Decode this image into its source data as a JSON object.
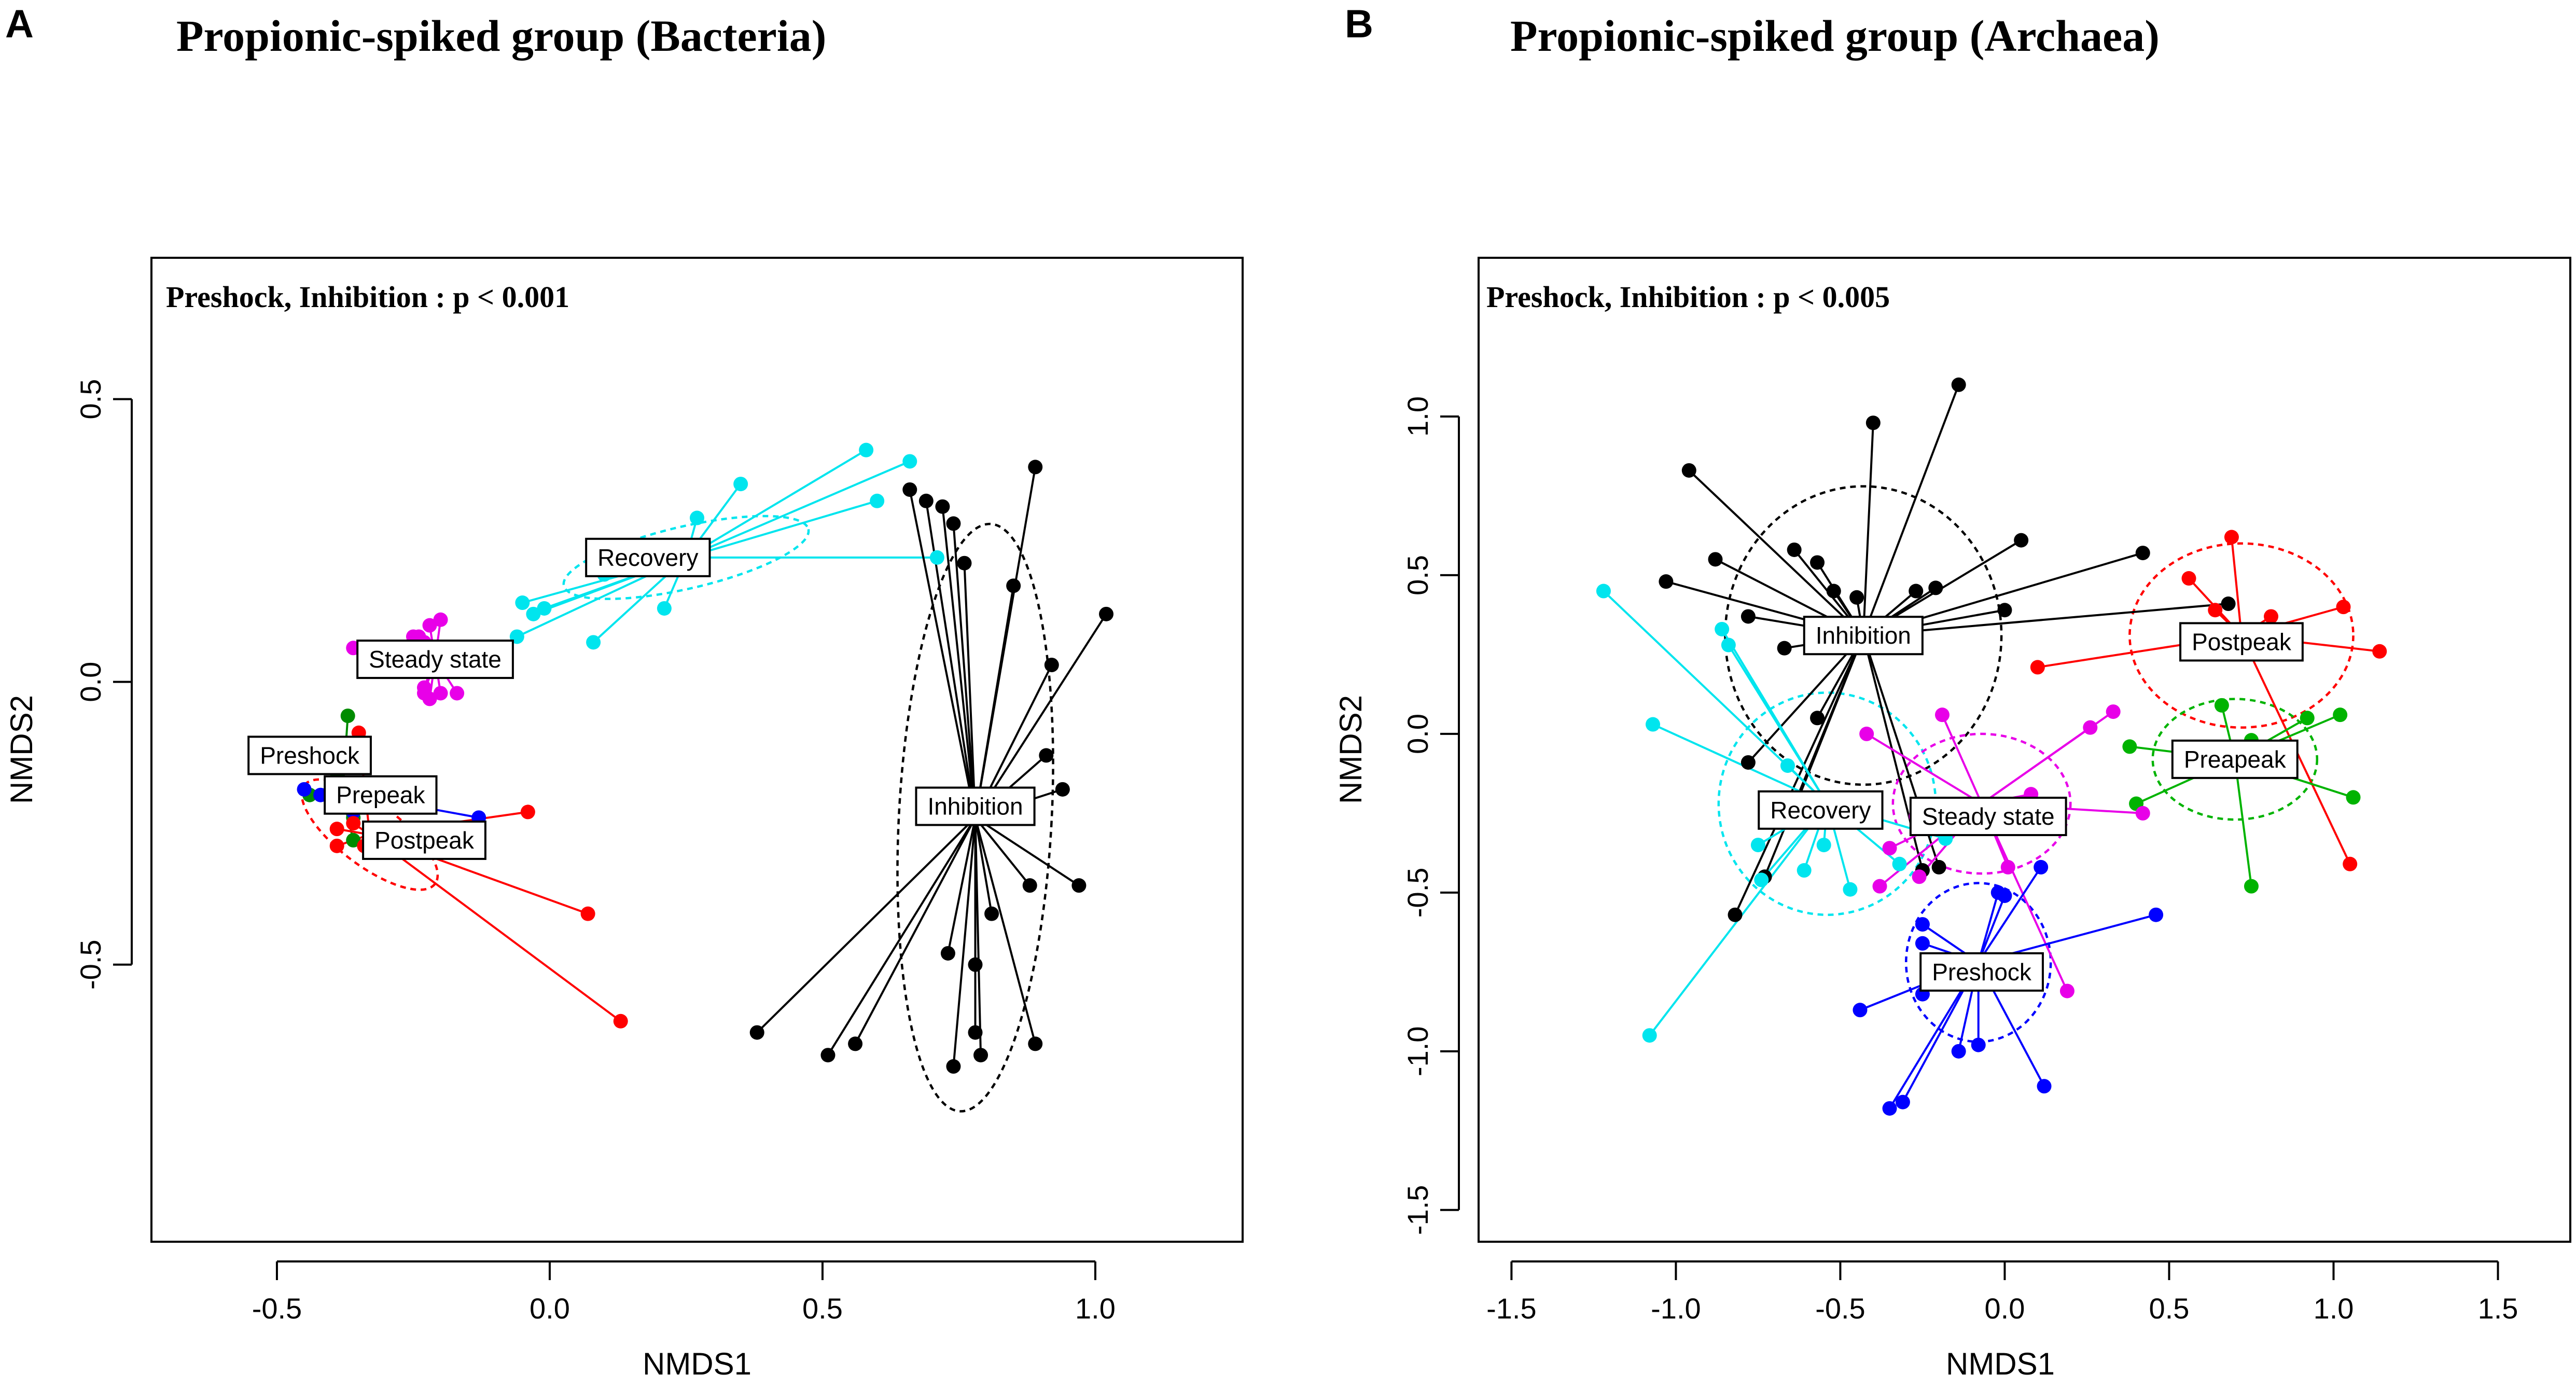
{
  "chart_data": [
    {
      "type": "scatter",
      "panel": "A",
      "title": "Propionic-spiked group (Bacteria)",
      "annotation": "Preshock, Inhibition : p < 0.001",
      "xlabel": "NMDS1",
      "ylabel": "NMDS2",
      "xlim": [
        -0.73,
        1.27
      ],
      "ylim": [
        -0.99,
        0.75
      ],
      "xticks": [
        -0.5,
        0.0,
        0.5,
        1.0
      ],
      "yticks": [
        -0.5,
        0.0,
        0.5
      ],
      "xtick_labels": [
        "-0.5",
        "0.0",
        "0.5",
        "1.0"
      ],
      "ytick_labels": [
        "-0.5",
        "0.0",
        "0.5"
      ],
      "grid": false,
      "groups": [
        {
          "name": "Recovery",
          "color": "#00e5ee",
          "centroid": [
            0.25,
            0.22
          ],
          "ellipse": {
            "rx": 0.23,
            "ry": 0.055,
            "angle_deg": 13
          },
          "points": [
            [
              -0.05,
              0.14
            ],
            [
              -0.03,
              0.12
            ],
            [
              -0.01,
              0.13
            ],
            [
              -0.06,
              0.08
            ],
            [
              0.08,
              0.07
            ],
            [
              0.1,
              0.19
            ],
            [
              0.21,
              0.13
            ],
            [
              0.27,
              0.29
            ],
            [
              0.35,
              0.35
            ],
            [
              0.58,
              0.41
            ],
            [
              0.66,
              0.39
            ],
            [
              0.6,
              0.32
            ],
            [
              0.71,
              0.22
            ]
          ]
        },
        {
          "name": "Steady state",
          "color": "#e800e8",
          "centroid": [
            -0.21,
            0.04
          ],
          "ellipse": {
            "rx": 0.03,
            "ry": 0.03,
            "angle_deg": 0
          },
          "points": [
            [
              -0.36,
              0.06
            ],
            [
              -0.24,
              0.08
            ],
            [
              -0.22,
              0.1
            ],
            [
              -0.2,
              0.11
            ],
            [
              -0.23,
              0.07
            ],
            [
              -0.25,
              0.08
            ],
            [
              -0.23,
              -0.01
            ],
            [
              -0.22,
              -0.03
            ],
            [
              -0.17,
              -0.02
            ],
            [
              -0.2,
              -0.02
            ],
            [
              -0.23,
              -0.02
            ]
          ]
        },
        {
          "name": "Inhibition",
          "color": "#000000",
          "centroid": [
            0.78,
            -0.24
          ],
          "ellipse": {
            "rx": 0.14,
            "ry": 0.52,
            "angle_deg": -3
          },
          "points": [
            [
              0.66,
              0.34
            ],
            [
              0.69,
              0.32
            ],
            [
              0.72,
              0.31
            ],
            [
              0.74,
              0.28
            ],
            [
              0.76,
              0.21
            ],
            [
              0.89,
              0.38
            ],
            [
              0.85,
              0.17
            ],
            [
              0.92,
              0.03
            ],
            [
              0.91,
              -0.13
            ],
            [
              0.94,
              -0.19
            ],
            [
              1.02,
              0.12
            ],
            [
              0.88,
              -0.36
            ],
            [
              0.97,
              -0.36
            ],
            [
              0.81,
              -0.41
            ],
            [
              0.78,
              -0.5
            ],
            [
              0.73,
              -0.48
            ],
            [
              0.38,
              -0.62
            ],
            [
              0.51,
              -0.66
            ],
            [
              0.56,
              -0.64
            ],
            [
              0.74,
              -0.68
            ],
            [
              0.78,
              -0.62
            ],
            [
              0.79,
              -0.66
            ],
            [
              0.89,
              -0.64
            ]
          ]
        },
        {
          "name": "Preshock",
          "color": "#008b00",
          "centroid": [
            -0.38,
            -0.2
          ],
          "ellipse": null,
          "points": [
            [
              -0.37,
              -0.06
            ],
            [
              -0.39,
              -0.17
            ],
            [
              -0.35,
              -0.21
            ],
            [
              -0.44,
              -0.2
            ],
            [
              -0.36,
              -0.24
            ],
            [
              -0.36,
              -0.28
            ]
          ]
        },
        {
          "name": "Prepeak",
          "color": "#0000ff",
          "centroid": [
            -0.3,
            -0.21
          ],
          "ellipse": null,
          "points": [
            [
              -0.45,
              -0.19
            ],
            [
              -0.42,
              -0.2
            ],
            [
              -0.13,
              -0.24
            ],
            [
              -0.36,
              -0.23
            ]
          ]
        },
        {
          "name": "Postpeak",
          "color": "#ff0000",
          "centroid": [
            -0.33,
            -0.27
          ],
          "ellipse": {
            "rx": 0.15,
            "ry": 0.055,
            "angle_deg": -37
          },
          "points": [
            [
              -0.35,
              -0.09
            ],
            [
              -0.39,
              -0.26
            ],
            [
              -0.39,
              -0.29
            ],
            [
              -0.34,
              -0.29
            ],
            [
              -0.36,
              -0.25
            ],
            [
              -0.04,
              -0.23
            ],
            [
              0.07,
              -0.41
            ],
            [
              0.13,
              -0.6
            ]
          ]
        }
      ],
      "labels": [
        {
          "text": "Recovery",
          "at": [
            0.18,
            0.22
          ]
        },
        {
          "text": "Steady state",
          "at": [
            -0.21,
            0.04
          ]
        },
        {
          "text": "Inhibition",
          "at": [
            0.78,
            -0.22
          ]
        },
        {
          "text": "Preshock",
          "at": [
            -0.44,
            -0.13
          ]
        },
        {
          "text": "Prepeak",
          "at": [
            -0.31,
            -0.2
          ]
        },
        {
          "text": "Postpeak",
          "at": [
            -0.23,
            -0.28
          ]
        }
      ]
    },
    {
      "type": "scatter",
      "panel": "B",
      "title": "Propionic-spiked group (Archaea)",
      "annotation": "Preshock, Inhibition : p < 0.005",
      "xlabel": "NMDS1",
      "ylabel": "NMDS2",
      "xlim": [
        -1.6,
        1.72
      ],
      "ylim": [
        -1.6,
        1.5
      ],
      "xticks": [
        -1.5,
        -1.0,
        -0.5,
        0.0,
        0.5,
        1.0,
        1.5
      ],
      "yticks": [
        -1.5,
        -1.0,
        -0.5,
        0.0,
        0.5,
        1.0
      ],
      "xtick_labels": [
        "-1.5",
        "-1.0",
        "-0.5",
        "0.0",
        "0.5",
        "1.0",
        "1.5"
      ],
      "ytick_labels": [
        "-1.5",
        "-1.0",
        "-0.5",
        "0.0",
        "0.5",
        "1.0"
      ],
      "grid": false,
      "groups": [
        {
          "name": "Inhibition",
          "color": "#000000",
          "centroid": [
            -0.43,
            0.31
          ],
          "ellipse": {
            "rx": 0.42,
            "ry": 0.47,
            "angle_deg": 0
          },
          "points": [
            [
              -0.96,
              0.83
            ],
            [
              -0.88,
              0.55
            ],
            [
              -1.03,
              0.48
            ],
            [
              -0.78,
              0.37
            ],
            [
              -0.64,
              0.58
            ],
            [
              -0.57,
              0.54
            ],
            [
              -0.52,
              0.45
            ],
            [
              -0.45,
              0.43
            ],
            [
              -0.4,
              0.98
            ],
            [
              -0.14,
              1.1
            ],
            [
              -0.27,
              0.45
            ],
            [
              -0.21,
              0.46
            ],
            [
              0.05,
              0.61
            ],
            [
              0.0,
              0.39
            ],
            [
              0.42,
              0.57
            ],
            [
              0.68,
              0.41
            ],
            [
              -0.3,
              0.31
            ],
            [
              -0.57,
              0.05
            ],
            [
              -0.67,
              0.27
            ],
            [
              -0.78,
              -0.09
            ],
            [
              -0.63,
              -0.21
            ],
            [
              -0.73,
              -0.45
            ],
            [
              -0.82,
              -0.57
            ],
            [
              -0.2,
              -0.42
            ],
            [
              -0.25,
              -0.43
            ]
          ]
        },
        {
          "name": "Postpeak",
          "color": "#ff0000",
          "centroid": [
            0.72,
            0.31
          ],
          "ellipse": {
            "rx": 0.34,
            "ry": 0.29,
            "angle_deg": 0
          },
          "points": [
            [
              0.56,
              0.49
            ],
            [
              0.69,
              0.62
            ],
            [
              0.81,
              0.37
            ],
            [
              0.64,
              0.39
            ],
            [
              1.03,
              0.4
            ],
            [
              1.14,
              0.26
            ],
            [
              0.1,
              0.21
            ],
            [
              1.05,
              -0.41
            ]
          ]
        },
        {
          "name": "Preapeak",
          "color": "#00b300",
          "centroid": [
            0.7,
            -0.08
          ],
          "ellipse": {
            "rx": 0.25,
            "ry": 0.19,
            "angle_deg": 0
          },
          "points": [
            [
              0.66,
              0.09
            ],
            [
              0.92,
              0.05
            ],
            [
              1.02,
              0.06
            ],
            [
              0.38,
              -0.04
            ],
            [
              0.75,
              -0.02
            ],
            [
              1.06,
              -0.2
            ],
            [
              0.4,
              -0.22
            ],
            [
              0.75,
              -0.48
            ]
          ]
        },
        {
          "name": "Recovery",
          "color": "#00e5ee",
          "centroid": [
            -0.54,
            -0.22
          ],
          "ellipse": {
            "rx": 0.33,
            "ry": 0.35,
            "angle_deg": 0
          },
          "points": [
            [
              -1.22,
              0.45
            ],
            [
              -0.86,
              0.33
            ],
            [
              -0.84,
              0.28
            ],
            [
              -1.07,
              0.03
            ],
            [
              -0.66,
              -0.1
            ],
            [
              -0.68,
              -0.24
            ],
            [
              -0.75,
              -0.35
            ],
            [
              -0.74,
              -0.46
            ],
            [
              -0.61,
              -0.43
            ],
            [
              -0.55,
              -0.35
            ],
            [
              -0.47,
              -0.49
            ],
            [
              -0.32,
              -0.41
            ],
            [
              -0.18,
              -0.33
            ],
            [
              -1.08,
              -0.95
            ]
          ]
        },
        {
          "name": "Steady state",
          "color": "#e800e8",
          "centroid": [
            -0.07,
            -0.22
          ],
          "ellipse": {
            "rx": 0.27,
            "ry": 0.22,
            "angle_deg": 0
          },
          "points": [
            [
              -0.42,
              0.0
            ],
            [
              -0.19,
              0.06
            ],
            [
              -0.27,
              -0.26
            ],
            [
              -0.35,
              -0.36
            ],
            [
              -0.38,
              -0.48
            ],
            [
              -0.26,
              -0.45
            ],
            [
              0.26,
              0.02
            ],
            [
              0.33,
              0.07
            ],
            [
              0.42,
              -0.25
            ],
            [
              0.01,
              -0.42
            ],
            [
              0.08,
              -0.19
            ],
            [
              0.19,
              -0.81
            ]
          ]
        },
        {
          "name": "Preshock",
          "color": "#0000ff",
          "centroid": [
            -0.08,
            -0.72
          ],
          "ellipse": {
            "rx": 0.22,
            "ry": 0.25,
            "angle_deg": 0
          },
          "points": [
            [
              -0.25,
              -0.6
            ],
            [
              -0.25,
              -0.66
            ],
            [
              -0.02,
              -0.5
            ],
            [
              0.0,
              -0.51
            ],
            [
              0.11,
              -0.42
            ],
            [
              0.46,
              -0.57
            ],
            [
              -0.44,
              -0.87
            ],
            [
              -0.25,
              -0.82
            ],
            [
              -0.08,
              -0.98
            ],
            [
              -0.14,
              -1.0
            ],
            [
              -0.31,
              -1.16
            ],
            [
              -0.35,
              -1.18
            ],
            [
              0.12,
              -1.11
            ]
          ]
        }
      ],
      "labels": [
        {
          "text": "Inhibition",
          "at": [
            -0.43,
            0.31
          ]
        },
        {
          "text": "Postpeak",
          "at": [
            0.72,
            0.29
          ]
        },
        {
          "text": "Preapeak",
          "at": [
            0.7,
            -0.08
          ]
        },
        {
          "text": "Recovery",
          "at": [
            -0.56,
            -0.24
          ]
        },
        {
          "text": "Steady state",
          "at": [
            -0.05,
            -0.26
          ]
        },
        {
          "text": "Preshock",
          "at": [
            -0.07,
            -0.75
          ]
        }
      ]
    }
  ]
}
